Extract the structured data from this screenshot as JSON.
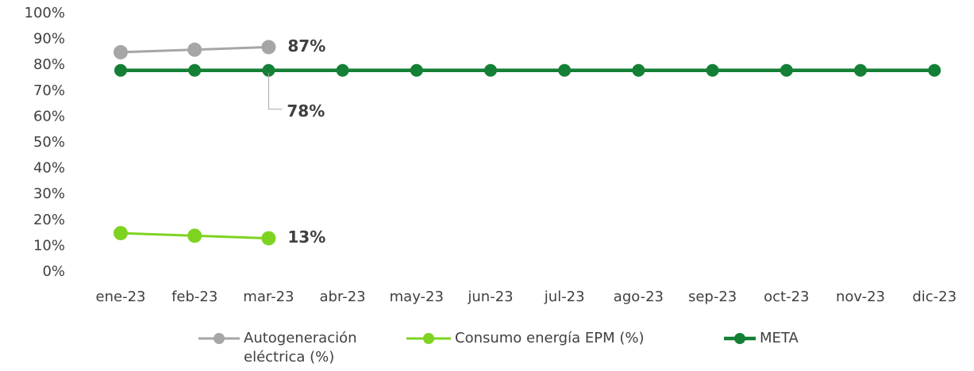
{
  "chart_data": {
    "type": "line",
    "categories": [
      "ene-23",
      "feb-23",
      "mar-23",
      "abr-23",
      "may-23",
      "jun-23",
      "jul-23",
      "ago-23",
      "sep-23",
      "oct-23",
      "nov-23",
      "dic-23"
    ],
    "series": [
      {
        "name": "Autogeneración eléctrica (%)",
        "color": "#a6a6a6",
        "label_color": "#595959",
        "values": [
          85,
          86,
          87,
          null,
          null,
          null,
          null,
          null,
          null,
          null,
          null,
          null
        ],
        "value_labels": [
          null,
          null,
          "87%",
          null,
          null,
          null,
          null,
          null,
          null,
          null,
          null,
          null
        ]
      },
      {
        "name": "Consumo energía EPM (%)",
        "color": "#7ed321",
        "label_color": "#7ed321",
        "values": [
          15,
          14,
          13,
          null,
          null,
          null,
          null,
          null,
          null,
          null,
          null,
          null
        ],
        "value_labels": [
          null,
          null,
          "13%",
          null,
          null,
          null,
          null,
          null,
          null,
          null,
          null,
          null
        ]
      },
      {
        "name": "META",
        "color": "#138036",
        "label_color": "#138036",
        "values": [
          78,
          78,
          78,
          78,
          78,
          78,
          78,
          78,
          78,
          78,
          78,
          78
        ],
        "value_labels": [
          null,
          null,
          "78%",
          null,
          null,
          null,
          null,
          null,
          null,
          null,
          null,
          null
        ]
      }
    ],
    "ylim": [
      0,
      100
    ],
    "yticks": [
      {
        "value": 0,
        "label": "0%"
      },
      {
        "value": 10,
        "label": "10%"
      },
      {
        "value": 20,
        "label": "20%"
      },
      {
        "value": 30,
        "label": "30%"
      },
      {
        "value": 40,
        "label": "40%"
      },
      {
        "value": 50,
        "label": "50%"
      },
      {
        "value": 60,
        "label": "60%"
      },
      {
        "value": 70,
        "label": "70%"
      },
      {
        "value": 80,
        "label": "80%"
      },
      {
        "value": 90,
        "label": "90%"
      },
      {
        "value": 100,
        "label": "100%"
      }
    ],
    "grid": false,
    "legend": "bottom"
  }
}
